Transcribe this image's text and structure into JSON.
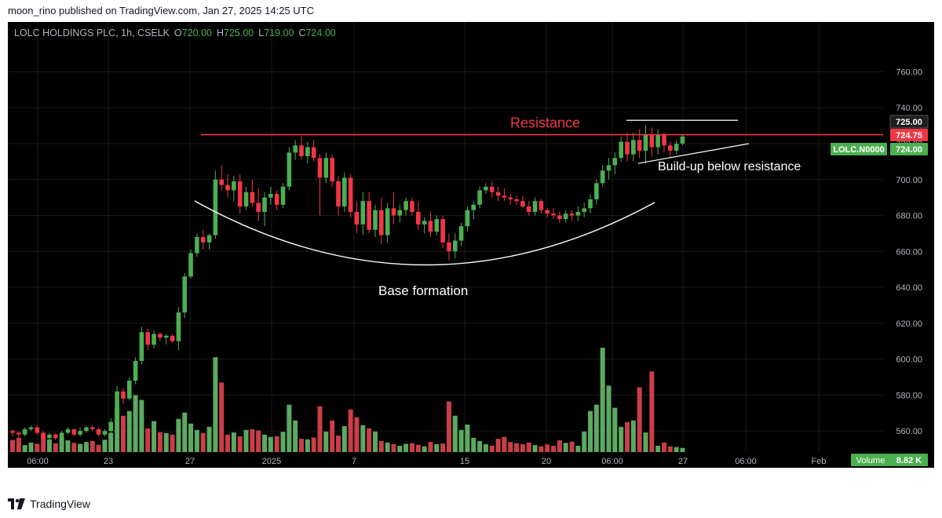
{
  "publish_line": "moon_rino published on TradingView.com, Jan 27, 2025 14:25 UTC",
  "footer_brand": "TradingView",
  "colors": {
    "up": "#4caf50",
    "down": "#f23645",
    "up_volume": "#66bb6a",
    "down_volume": "#e0454f",
    "resistance": "#f23645",
    "annotation": "#ffffff",
    "axis_text": "#b2b5be",
    "grid": "#1a1a1a",
    "price_badge": "#f23645",
    "symbol_badge": "#4caf50",
    "volume_badge": "#4caf50"
  },
  "chart_data": {
    "type": "candlestick",
    "symbol": "LOLC HOLDINGS PLC",
    "interval": "1h",
    "exchange": "CSELK",
    "ohlc_header": {
      "o_label": "O",
      "o": "720.00",
      "h_label": "H",
      "h": "725.00",
      "l_label": "L",
      "l": "719.00",
      "c_label": "C",
      "c": "724.00"
    },
    "x_tick_labels": [
      "06:00",
      "23",
      "27",
      "2025",
      "7",
      "15",
      "20",
      "06:00",
      "27",
      "06:00",
      "Feb"
    ],
    "y_ticks": [
      560,
      580,
      600,
      620,
      640,
      660,
      680,
      700,
      720,
      740,
      760
    ],
    "y_tick_labels": [
      "560.00",
      "580.00",
      "600.00",
      "620.00",
      "640.00",
      "660.00",
      "680.00",
      "700.00",
      "720.00",
      "740.00",
      "760.00"
    ],
    "ylim": [
      550,
      772
    ],
    "grid": true,
    "price_labels": [
      {
        "value": 725.0,
        "label": "725.00",
        "style": "dark"
      },
      {
        "value": 724.75,
        "label": "724.75",
        "style": "red"
      },
      {
        "value": 724.0,
        "label": "724.00",
        "style": "green",
        "tag": "LOLC.N0000"
      }
    ],
    "volume_label": "Volume",
    "volume_value": "8.82 K",
    "candles": [
      [
        560,
        561,
        557,
        559
      ],
      [
        559,
        560,
        556,
        558
      ],
      [
        558,
        562,
        557,
        561
      ],
      [
        561,
        563,
        560,
        562
      ],
      [
        562,
        563,
        558,
        559
      ],
      [
        559,
        560,
        555,
        556
      ],
      [
        556,
        559,
        555,
        558
      ],
      [
        558,
        559,
        555,
        556
      ],
      [
        556,
        560,
        556,
        559
      ],
      [
        559,
        562,
        558,
        561
      ],
      [
        561,
        561,
        557,
        558
      ],
      [
        558,
        562,
        557,
        560
      ],
      [
        560,
        563,
        559,
        562
      ],
      [
        562,
        563,
        560,
        561
      ],
      [
        561,
        562,
        557,
        558
      ],
      [
        558,
        561,
        557,
        560
      ],
      [
        560,
        567,
        559,
        565
      ],
      [
        565,
        585,
        564,
        582
      ],
      [
        582,
        584,
        575,
        578
      ],
      [
        578,
        590,
        577,
        588
      ],
      [
        588,
        601,
        586,
        599
      ],
      [
        599,
        618,
        597,
        615
      ],
      [
        615,
        617,
        605,
        608
      ],
      [
        608,
        616,
        606,
        614
      ],
      [
        614,
        615,
        610,
        612
      ],
      [
        612,
        614,
        608,
        613
      ],
      [
        613,
        614,
        609,
        610
      ],
      [
        610,
        629,
        605,
        626
      ],
      [
        626,
        648,
        623,
        646
      ],
      [
        646,
        661,
        645,
        659
      ],
      [
        659,
        670,
        657,
        668
      ],
      [
        668,
        672,
        661,
        665
      ],
      [
        665,
        670,
        661,
        669
      ],
      [
        669,
        705,
        667,
        700
      ],
      [
        700,
        708,
        694,
        697
      ],
      [
        697,
        703,
        690,
        694
      ],
      [
        694,
        702,
        688,
        699
      ],
      [
        699,
        703,
        681,
        685
      ],
      [
        685,
        696,
        683,
        693
      ],
      [
        693,
        700,
        685,
        687
      ],
      [
        687,
        695,
        677,
        682
      ],
      [
        682,
        693,
        674,
        690
      ],
      [
        690,
        696,
        686,
        692
      ],
      [
        692,
        694,
        683,
        686
      ],
      [
        686,
        698,
        684,
        696
      ],
      [
        696,
        718,
        694,
        715
      ],
      [
        715,
        722,
        711,
        719
      ],
      [
        719,
        724,
        711,
        713
      ],
      [
        713,
        721,
        709,
        718
      ],
      [
        718,
        722,
        710,
        712
      ],
      [
        712,
        714,
        680,
        701
      ],
      [
        701,
        715,
        698,
        712
      ],
      [
        712,
        714,
        696,
        699
      ],
      [
        699,
        702,
        680,
        685
      ],
      [
        685,
        704,
        682,
        701
      ],
      [
        701,
        703,
        679,
        682
      ],
      [
        682,
        688,
        670,
        675
      ],
      [
        675,
        693,
        669,
        688
      ],
      [
        688,
        693,
        670,
        672
      ],
      [
        672,
        686,
        668,
        683
      ],
      [
        683,
        690,
        664,
        669
      ],
      [
        669,
        687,
        665,
        684
      ],
      [
        684,
        693,
        675,
        680
      ],
      [
        680,
        686,
        676,
        683
      ],
      [
        683,
        690,
        680,
        688
      ],
      [
        688,
        690,
        680,
        682
      ],
      [
        682,
        688,
        672,
        675
      ],
      [
        675,
        679,
        670,
        677
      ],
      [
        677,
        682,
        668,
        671
      ],
      [
        671,
        680,
        669,
        678
      ],
      [
        678,
        680,
        662,
        665
      ],
      [
        665,
        670,
        655,
        660
      ],
      [
        660,
        670,
        656,
        666
      ],
      [
        666,
        676,
        663,
        674
      ],
      [
        674,
        685,
        671,
        683
      ],
      [
        683,
        688,
        678,
        686
      ],
      [
        686,
        696,
        684,
        694
      ],
      [
        694,
        698,
        692,
        696
      ],
      [
        696,
        699,
        690,
        693
      ],
      [
        693,
        696,
        688,
        691
      ],
      [
        691,
        695,
        688,
        690
      ],
      [
        690,
        692,
        686,
        689
      ],
      [
        689,
        691,
        686,
        688
      ],
      [
        688,
        691,
        684,
        685
      ],
      [
        685,
        688,
        680,
        682
      ],
      [
        682,
        690,
        680,
        688
      ],
      [
        688,
        689,
        681,
        683
      ],
      [
        683,
        684,
        679,
        681
      ],
      [
        681,
        684,
        678,
        680
      ],
      [
        680,
        682,
        676,
        678
      ],
      [
        678,
        683,
        676,
        681
      ],
      [
        681,
        683,
        677,
        680
      ],
      [
        680,
        685,
        677,
        682
      ],
      [
        682,
        687,
        679,
        684
      ],
      [
        684,
        692,
        681,
        689
      ],
      [
        689,
        700,
        686,
        698
      ],
      [
        698,
        708,
        696,
        705
      ],
      [
        705,
        712,
        700,
        708
      ],
      [
        708,
        715,
        703,
        712
      ],
      [
        712,
        724,
        710,
        721
      ],
      [
        721,
        726,
        710,
        714
      ],
      [
        714,
        726,
        710,
        722
      ],
      [
        722,
        728,
        712,
        716
      ],
      [
        716,
        730,
        709,
        725
      ],
      [
        725,
        729,
        713,
        718
      ],
      [
        718,
        728,
        714,
        725
      ],
      [
        725,
        726,
        715,
        719
      ],
      [
        719,
        721,
        712,
        716
      ],
      [
        716,
        722,
        714,
        720
      ],
      [
        720,
        725,
        719,
        724
      ]
    ],
    "volumes": [
      3.8,
      4.5,
      2.2,
      3.0,
      2.6,
      5.4,
      4.0,
      2.8,
      4.5,
      3.7,
      2.9,
      2.6,
      3.2,
      3.5,
      2.3,
      3.9,
      6.1,
      14.0,
      11.5,
      13.0,
      18.0,
      16.5,
      7.5,
      9.8,
      6.3,
      6.0,
      5.5,
      10.5,
      12.5,
      9.0,
      7.0,
      6.0,
      8.0,
      30.0,
      22.0,
      5.5,
      6.2,
      5.0,
      7.0,
      7.2,
      6.8,
      5.5,
      4.8,
      5.0,
      6.4,
      15.0,
      10.0,
      4.2,
      4.0,
      4.6,
      14.5,
      6.5,
      10.0,
      5.2,
      8.2,
      13.5,
      11.0,
      8.5,
      7.5,
      6.5,
      3.5,
      3.0,
      2.5,
      2.0,
      2.6,
      2.8,
      2.3,
      1.8,
      3.2,
      2.5,
      2.7,
      16.0,
      11.5,
      7.0,
      8.7,
      4.5,
      3.5,
      2.5,
      2.0,
      4.2,
      4.8,
      3.2,
      2.8,
      2.5,
      3.0,
      2.2,
      1.8,
      2.4,
      2.0,
      3.7,
      2.9,
      3.3,
      2.0,
      6.5,
      13.0,
      15.0,
      33.0,
      21.0,
      14.0,
      8.0,
      9.5,
      10.0,
      20.5,
      6.2,
      25.5,
      2.0,
      3.0,
      1.8,
      1.6,
      1.3
    ],
    "annotations": {
      "resistance_label": "Resistance",
      "resistance_value": 725,
      "base_label": "Base formation",
      "buildup_label": "Build-up below resistance",
      "top_line_value": 733,
      "triangle_low": [
        709,
        720
      ]
    }
  }
}
